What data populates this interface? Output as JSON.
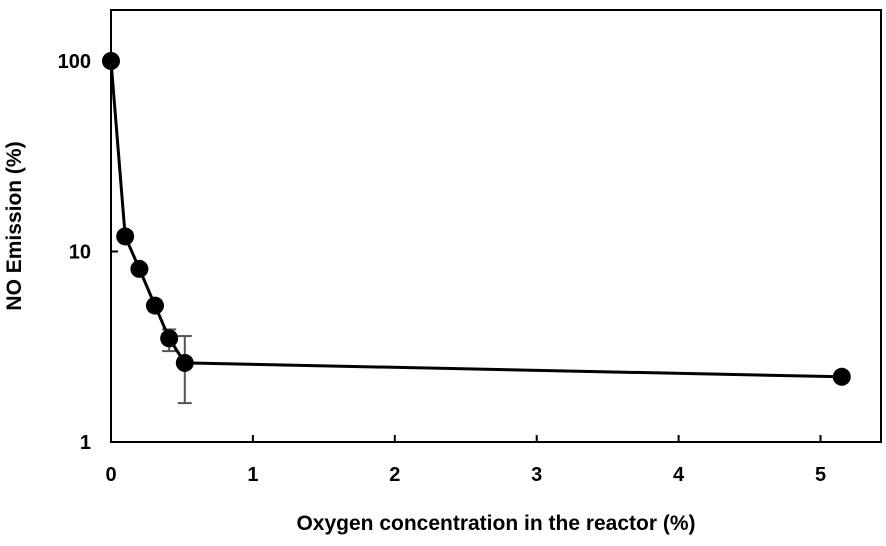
{
  "chart_data": {
    "type": "scatter",
    "title": "",
    "xlabel": "Oxygen concentration in the reactor (%)",
    "ylabel": "NO Emission (%)",
    "xlim": [
      0,
      5.5
    ],
    "ylim": [
      1,
      200
    ],
    "y_scale": "log",
    "grid": false,
    "legend": "none",
    "x_ticks": [
      {
        "value": 0,
        "label": "0"
      },
      {
        "value": 1,
        "label": "1"
      },
      {
        "value": 2,
        "label": "2"
      },
      {
        "value": 3,
        "label": "3"
      },
      {
        "value": 4,
        "label": "4"
      },
      {
        "value": 5,
        "label": "5"
      }
    ],
    "y_ticks": [
      {
        "value": 1,
        "label": "1"
      },
      {
        "value": 10,
        "label": "10"
      },
      {
        "value": 100,
        "label": "100"
      }
    ],
    "series": [
      {
        "line": true,
        "marker": "circle",
        "color": "#000000",
        "points": [
          {
            "x": 0.0,
            "y": 100
          },
          {
            "x": 0.1,
            "y": 12
          },
          {
            "x": 0.2,
            "y": 8.1
          },
          {
            "x": 0.31,
            "y": 5.2
          },
          {
            "x": 0.41,
            "y": 3.5,
            "err_low": 3.0,
            "err_high": 3.9
          },
          {
            "x": 0.52,
            "y": 2.6,
            "err_low": 1.6,
            "err_high": 3.6
          },
          {
            "x": 5.15,
            "y": 2.2
          }
        ]
      }
    ]
  }
}
